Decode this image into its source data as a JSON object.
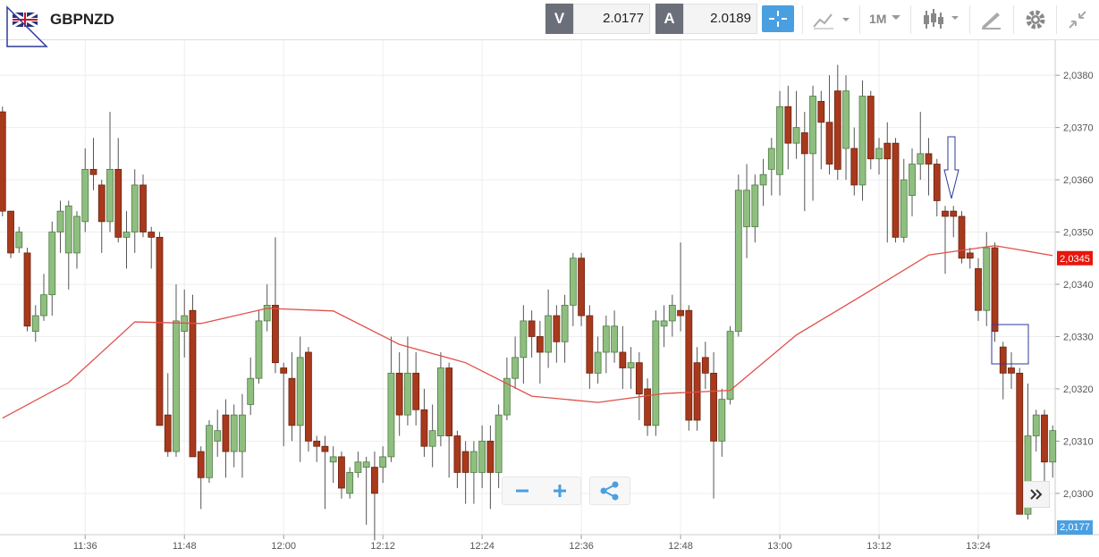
{
  "toolbar": {
    "symbol": "GBPNZD",
    "bid_label": "V",
    "bid": "2.0177",
    "ask_label": "A",
    "ask": "2.0189",
    "timeframe": "1M"
  },
  "chart_data": {
    "type": "candlestick",
    "x": [
      686,
      687,
      688,
      689,
      690,
      691,
      692,
      693,
      694,
      695,
      696,
      697,
      698,
      699,
      700,
      701,
      702,
      703,
      704,
      705,
      706,
      707,
      708,
      709,
      710,
      711,
      712,
      713,
      714,
      715,
      716,
      717,
      718,
      719,
      720,
      721,
      722,
      723,
      724,
      725,
      726,
      727,
      728,
      729,
      730,
      731,
      732,
      733,
      734,
      735,
      736,
      737,
      738,
      739,
      740,
      741,
      742,
      743,
      744,
      745,
      746,
      747,
      748,
      749,
      750,
      751,
      752,
      753,
      754,
      755,
      756,
      757,
      758,
      759,
      760,
      761,
      762,
      763,
      764,
      765,
      766,
      767,
      768,
      769,
      770,
      771,
      772,
      773,
      774,
      775,
      776,
      777,
      778,
      779,
      780,
      781,
      782,
      783,
      784,
      785,
      786,
      787,
      788,
      789,
      790,
      791,
      792,
      793,
      794,
      795,
      796,
      797,
      798,
      799,
      800,
      801,
      802,
      803,
      804,
      805,
      806,
      807,
      808,
      809,
      810,
      811,
      812,
      813
    ],
    "open": [
      2.0373,
      2.0354,
      2.0347,
      2.0346,
      2.0331,
      2.0334,
      2.0338,
      2.035,
      2.0346,
      2.0346,
      2.0352,
      2.0362,
      2.0359,
      2.0352,
      2.0362,
      2.0349,
      2.035,
      2.0359,
      2.035,
      2.0349,
      2.0315,
      2.0308,
      2.0331,
      2.0335,
      2.0308,
      2.0303,
      2.031,
      2.0315,
      2.0308,
      2.0308,
      2.0317,
      2.0322,
      2.0333,
      2.0336,
      2.0324,
      2.0322,
      2.0313,
      2.0327,
      2.031,
      2.0309,
      2.0306,
      2.0307,
      2.03,
      2.0304,
      2.0305,
      2.0305,
      2.0305,
      2.0307,
      2.0323,
      2.0315,
      2.0323,
      2.0316,
      2.0309,
      2.0311,
      2.0324,
      2.0311,
      2.0308,
      2.0304,
      2.0304,
      2.031,
      2.0304,
      2.0315,
      2.0322,
      2.0326,
      2.0333,
      2.033,
      2.0327,
      2.0334,
      2.0329,
      2.0336,
      2.0345,
      2.0334,
      2.0323,
      2.0327,
      2.0327,
      2.0327,
      2.0324,
      2.0325,
      2.032,
      2.0313,
      2.0332,
      2.0333,
      2.0335,
      2.0335,
      2.0325,
      2.0326,
      2.0323,
      2.031,
      2.0318,
      2.0331,
      2.0351,
      2.0351,
      2.0359,
      2.0362,
      2.0361,
      2.0374,
      2.0367,
      2.0369,
      2.0365,
      2.0375,
      2.0371,
      2.0377,
      2.0366,
      2.0366,
      2.0359,
      2.0376,
      2.0364,
      2.0367,
      2.0367,
      2.0349,
      2.0357,
      2.0363,
      2.0365,
      2.0363,
      2.0354,
      2.0354,
      2.0353,
      2.0346,
      2.0343,
      2.0335,
      2.0347,
      2.0328,
      2.0324,
      2.0323,
      2.0296,
      2.0311,
      2.0315,
      2.0306
    ],
    "high": [
      2.0374,
      2.0354,
      2.0351,
      2.0347,
      2.0336,
      2.0342,
      2.0352,
      2.0356,
      2.0356,
      2.0354,
      2.0366,
      2.0368,
      2.036,
      2.0373,
      2.0368,
      2.0354,
      2.0362,
      2.0361,
      2.0351,
      2.035,
      2.0323,
      2.034,
      2.0339,
      2.0338,
      2.0309,
      2.0314,
      2.0316,
      2.0318,
      2.0317,
      2.0319,
      2.0326,
      2.0335,
      2.034,
      2.0349,
      2.0325,
      2.0327,
      2.033,
      2.0328,
      2.0311,
      2.0311,
      2.0309,
      2.0308,
      2.0305,
      2.0308,
      2.0307,
      2.0308,
      2.0309,
      2.033,
      2.0327,
      2.033,
      2.0327,
      2.032,
      2.0317,
      2.0327,
      2.0325,
      2.0312,
      2.031,
      2.031,
      2.0313,
      2.0313,
      2.0317,
      2.0326,
      2.033,
      2.0336,
      2.0335,
      2.0333,
      2.0339,
      2.0336,
      2.0338,
      2.0346,
      2.0346,
      2.0336,
      2.033,
      2.0334,
      2.0335,
      2.0332,
      2.0328,
      2.0327,
      2.0322,
      2.0335,
      2.0336,
      2.0338,
      2.0348,
      2.0336,
      2.0328,
      2.0329,
      2.0327,
      2.032,
      2.0332,
      2.0361,
      2.0363,
      2.0361,
      2.0364,
      2.0368,
      2.0377,
      2.0378,
      2.0377,
      2.0373,
      2.0378,
      2.0377,
      2.038,
      2.0382,
      2.038,
      2.037,
      2.0379,
      2.0377,
      2.0368,
      2.0371,
      2.0368,
      2.0364,
      2.0366,
      2.0373,
      2.0368,
      2.0364,
      2.0355,
      2.0355,
      2.0354,
      2.0347,
      2.0345,
      2.035,
      2.0348,
      2.0329,
      2.0327,
      2.0324,
      2.0321,
      2.0316,
      2.0316,
      2.0313
    ],
    "low": [
      2.0353,
      2.0345,
      2.0346,
      2.0331,
      2.0329,
      2.0333,
      2.0334,
      2.0346,
      2.0339,
      2.0343,
      2.035,
      2.0358,
      2.0346,
      2.035,
      2.0348,
      2.0343,
      2.0346,
      2.0349,
      2.0343,
      2.0313,
      2.0307,
      2.0307,
      2.0326,
      2.0307,
      2.0297,
      2.0302,
      2.0307,
      2.0303,
      2.0305,
      2.0303,
      2.0315,
      2.0321,
      2.0331,
      2.0323,
      2.0309,
      2.031,
      2.0306,
      2.0308,
      2.0306,
      2.0297,
      2.0302,
      2.0299,
      2.0299,
      2.0303,
      2.0294,
      2.0291,
      2.0302,
      2.0306,
      2.0311,
      2.0313,
      2.0313,
      2.0307,
      2.0305,
      2.0309,
      2.0303,
      2.0301,
      2.0298,
      2.0298,
      2.0301,
      2.0297,
      2.0301,
      2.0314,
      2.032,
      2.0321,
      2.0326,
      2.0321,
      2.0324,
      2.0325,
      2.0325,
      2.0332,
      2.0332,
      2.032,
      2.0321,
      2.0323,
      2.0325,
      2.032,
      2.032,
      2.0314,
      2.0311,
      2.0311,
      2.0328,
      2.033,
      2.0331,
      2.0312,
      2.0312,
      2.032,
      2.0299,
      2.0307,
      2.0317,
      2.033,
      2.0345,
      2.0348,
      2.0355,
      2.0357,
      2.0357,
      2.0362,
      2.0364,
      2.0354,
      2.0356,
      2.0362,
      2.0361,
      2.036,
      2.036,
      2.0357,
      2.0356,
      2.0362,
      2.0361,
      2.0348,
      2.0348,
      2.0348,
      2.0353,
      2.036,
      2.0357,
      2.0353,
      2.0342,
      2.0349,
      2.0344,
      2.0343,
      2.0333,
      2.0332,
      2.0329,
      2.0318,
      2.032,
      2.0296,
      2.0295,
      2.0308,
      2.0302,
      2.0303
    ],
    "close": [
      2.0354,
      2.0346,
      2.035,
      2.0332,
      2.0334,
      2.0338,
      2.035,
      2.0354,
      2.0355,
      2.0353,
      2.0362,
      2.0361,
      2.0352,
      2.0362,
      2.0349,
      2.035,
      2.0359,
      2.035,
      2.0349,
      2.0313,
      2.0308,
      2.0333,
      2.0334,
      2.0307,
      2.0303,
      2.0313,
      2.0312,
      2.0308,
      2.0315,
      2.0315,
      2.0322,
      2.0333,
      2.0336,
      2.0325,
      2.0323,
      2.0313,
      2.0326,
      2.031,
      2.0309,
      2.0308,
      2.0307,
      2.0301,
      2.0304,
      2.0306,
      2.0306,
      2.03,
      2.0307,
      2.0323,
      2.0315,
      2.0323,
      2.0316,
      2.0309,
      2.0312,
      2.0324,
      2.0311,
      2.0304,
      2.0304,
      2.0308,
      2.031,
      2.0304,
      2.0315,
      2.0322,
      2.0326,
      2.0333,
      2.033,
      2.0327,
      2.0334,
      2.0329,
      2.0336,
      2.0345,
      2.0334,
      2.0323,
      2.0327,
      2.0332,
      2.0332,
      2.0324,
      2.0325,
      2.0319,
      2.0313,
      2.0333,
      2.0333,
      2.0336,
      2.0334,
      2.0314,
      2.0314,
      2.0323,
      2.031,
      2.0318,
      2.0331,
      2.0358,
      2.0358,
      2.0359,
      2.0361,
      2.0366,
      2.0374,
      2.0367,
      2.037,
      2.0365,
      2.0376,
      2.0371,
      2.0363,
      2.0362,
      2.0377,
      2.0359,
      2.0376,
      2.0364,
      2.0366,
      2.0364,
      2.0349,
      2.036,
      2.0363,
      2.0365,
      2.0363,
      2.0356,
      2.0353,
      2.0353,
      2.0345,
      2.0345,
      2.0335,
      2.0347,
      2.0331,
      2.0323,
      2.0323,
      2.0296,
      2.0311,
      2.0315,
      2.0306,
      2.0312
    ],
    "up_color": "#8fbf7f",
    "down_color": "#a8391c",
    "ma": {
      "color": "#e0504a",
      "x": [
        686,
        694,
        702,
        710,
        718,
        726,
        734,
        742,
        750,
        758,
        766,
        774,
        782,
        790,
        798,
        806,
        813
      ],
      "values": [
        2.03144,
        2.03212,
        2.03328,
        2.03325,
        2.03354,
        2.03349,
        2.03285,
        2.0325,
        2.03186,
        2.03174,
        2.03191,
        2.03197,
        2.03303,
        2.03379,
        2.03456,
        2.03474,
        2.03455
      ]
    },
    "ma_tag": {
      "value": 2.0345,
      "label": "2,0345"
    },
    "price_tag": "2,0177",
    "xlim": [
      685.7,
      813.3
    ],
    "ylim": [
      2.03867,
      2.02921
    ],
    "xticks": [
      {
        "value": 696,
        "label": "11:36"
      },
      {
        "value": 708,
        "label": "11:48"
      },
      {
        "value": 720,
        "label": "12:00"
      },
      {
        "value": 732,
        "label": "12:12"
      },
      {
        "value": 744,
        "label": "12:24"
      },
      {
        "value": 756,
        "label": "12:36"
      },
      {
        "value": 768,
        "label": "12:48"
      },
      {
        "value": 780,
        "label": "13:00"
      },
      {
        "value": 792,
        "label": "13:12"
      },
      {
        "value": 804,
        "label": "13:24"
      }
    ],
    "yticks": [
      {
        "value": 2.03,
        "label": "2,0300"
      },
      {
        "value": 2.031,
        "label": "2,0310"
      },
      {
        "value": 2.032,
        "label": "2,0320"
      },
      {
        "value": 2.033,
        "label": "2,0330"
      },
      {
        "value": 2.034,
        "label": "2,0340"
      },
      {
        "value": 2.035,
        "label": "2,0350"
      },
      {
        "value": 2.036,
        "label": "2,0360"
      },
      {
        "value": 2.037,
        "label": "2,0370"
      },
      {
        "value": 2.038,
        "label": "2,0380"
      }
    ],
    "grid": true
  }
}
